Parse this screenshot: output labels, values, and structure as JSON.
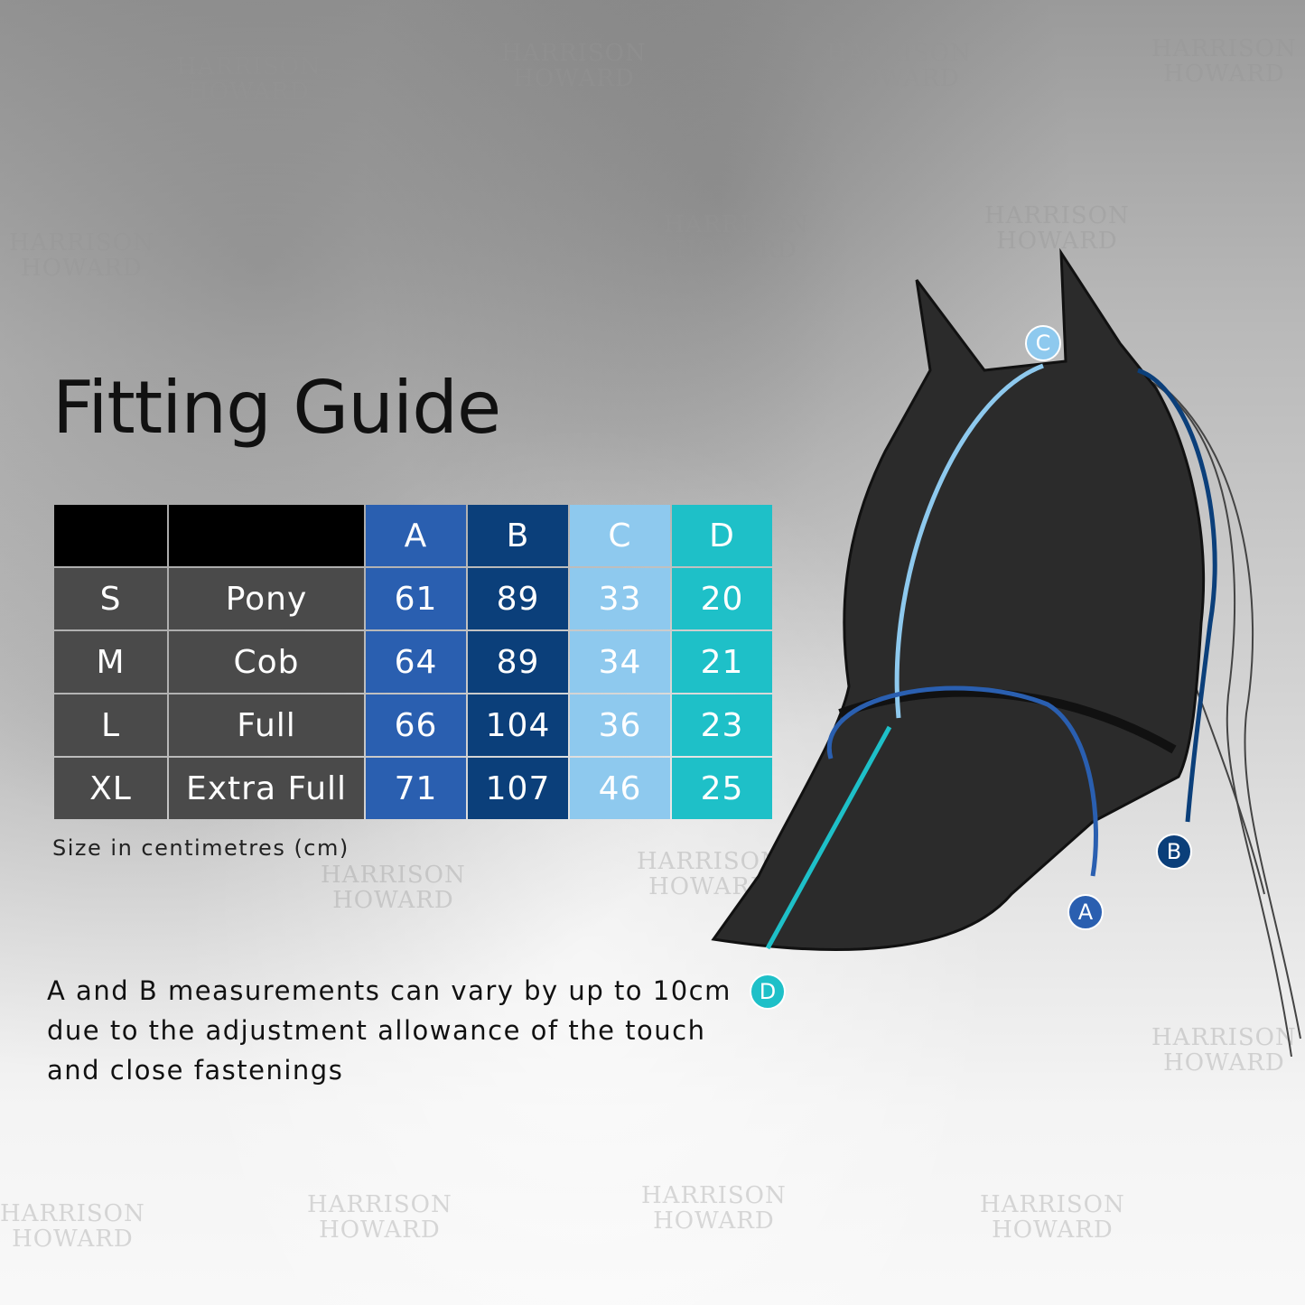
{
  "title": "Fitting Guide",
  "watermark": "HARRISON HOWARD",
  "table": {
    "headers": [
      "",
      "",
      "A",
      "B",
      "C",
      "D"
    ],
    "rows": [
      {
        "size": "S",
        "type": "Pony",
        "A": "61",
        "B": "89",
        "C": "33",
        "D": "20"
      },
      {
        "size": "M",
        "type": "Cob",
        "A": "64",
        "B": "89",
        "C": "34",
        "D": "21"
      },
      {
        "size": "L",
        "type": "Full",
        "A": "66",
        "B": "104",
        "C": "36",
        "D": "23"
      },
      {
        "size": "XL",
        "type": "Extra Full",
        "A": "71",
        "B": "107",
        "C": "46",
        "D": "25"
      }
    ]
  },
  "unit_note": "Size in centimetres (cm)",
  "description": "A and B measurements can vary by up to 10cm due to the adjustment allowance of the touch and close fastenings",
  "markers": {
    "A": "A",
    "B": "B",
    "C": "C",
    "D": "D"
  },
  "colors": {
    "A": "#2a5fb0",
    "B": "#0b3f7a",
    "C": "#8ec9ee",
    "D": "#1ec0c8"
  }
}
